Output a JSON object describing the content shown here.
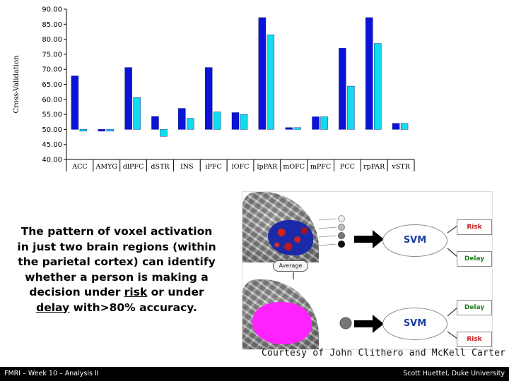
{
  "chart_data": {
    "type": "bar",
    "ylabel": "Cross-Validation",
    "ylim": [
      40,
      90
    ],
    "yticks": [
      "40.00",
      "45.00",
      "50.00",
      "55.00",
      "60.00",
      "65.00",
      "70.00",
      "75.00",
      "80.00",
      "85.00",
      "90.00"
    ],
    "baseline": 50,
    "categories": [
      "ACC",
      "AMYG",
      "dlPFC",
      "dSTR",
      "INS",
      "iPFC",
      "lOFC",
      "lpPAR",
      "mOFC",
      "mPFC",
      "PCC",
      "rpPAR",
      "vSTR"
    ],
    "grid": false,
    "legend": "none",
    "series": [
      {
        "color": "#0a14d8",
        "values": [
          67.8,
          49.4,
          70.6,
          54.3,
          57.0,
          70.6,
          55.6,
          87.2,
          50.6,
          54.2,
          77.0,
          87.2,
          52.0
        ]
      },
      {
        "color": "#10dcf0",
        "values": [
          49.4,
          49.4,
          60.6,
          47.7,
          53.7,
          55.8,
          55.0,
          81.5,
          50.6,
          54.2,
          64.4,
          78.6,
          52.0
        ]
      }
    ]
  },
  "caption": {
    "line1": "The pattern of voxel activation",
    "line2": "in just two brain regions (within",
    "line3": "the parietal cortex) can identify",
    "line4a": "whether a person is making a",
    "line5a": "decision under ",
    "line5b": "risk",
    "line5c": " or under",
    "line6a": "delay",
    "line6b": " with>80% accuracy."
  },
  "diagram": {
    "average_label": "Average",
    "svm_label": "SVM",
    "risk_label": "Risk",
    "delay_label": "Delay"
  },
  "credit": "Courtesy of John Clithero and McKell Carter",
  "footer": {
    "left": "FMRI – Week 10 – Analysis II",
    "right": "Scott Huettel, Duke University"
  }
}
